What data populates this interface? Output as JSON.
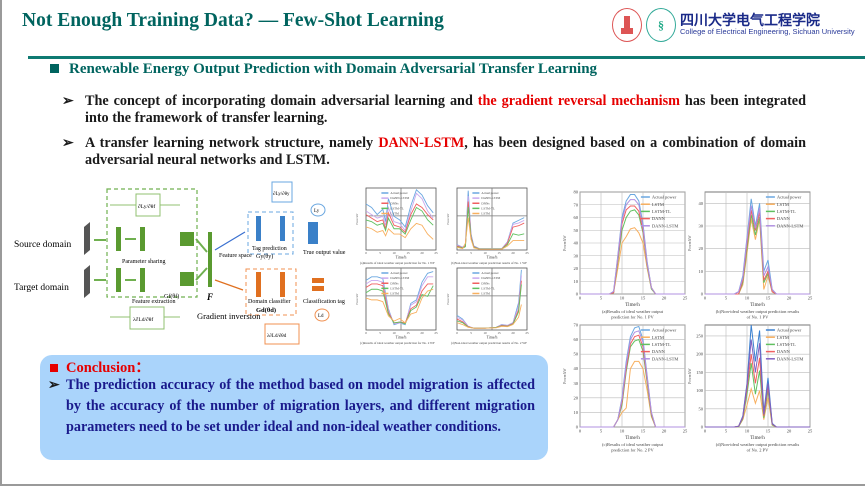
{
  "header": {
    "title": "Not Enough Training Data? — Few-Shot Learning",
    "logo_cn": "四川大学电气工程学院",
    "logo_en": "College of Electrical Engineering, Sichuan University"
  },
  "section": {
    "heading": "Renewable Energy Output Prediction with Domain Adversarial Transfer Learning"
  },
  "bullets": [
    {
      "pre": "The concept of incorporating domain adversarial learning and ",
      "highlight": "the gradient reversal mechanism",
      "post": " has been integrated into the framework of transfer learning."
    },
    {
      "pre": "A transfer learning network structure, namely ",
      "highlight": "DANN-LSTM",
      "post": ", has been designed based on a combination of domain adversarial neural networks and LSTM."
    }
  ],
  "bullet_marker": "➢",
  "diagram": {
    "source": "Source domain",
    "target": "Target domain",
    "param_sharing": "Parameter sharing",
    "feature_extraction": "Feature extraction",
    "gf": "Gf(θf)",
    "f": "F",
    "feature_space": "Feature space",
    "tag_prediction": "Tag prediction",
    "gy": "Gy(θy)",
    "true_output": "True output value",
    "domain_classifier": "Domain classifier",
    "gd": "Gd(θd)",
    "class_tag": "Classification tag",
    "gradient_inversion": "Gradient inversion",
    "grad_top": "∂Ly/∂θf",
    "grad_bottom": "λ∂Ld/∂θf",
    "grad_y": "∂Ly/∂θy",
    "grad_d": "λ∂Ld/∂θd",
    "ly": "Ly",
    "ld": "Ld"
  },
  "chart_data": [
    {
      "type": "line",
      "xlabel": "Time/h",
      "ylabel": "Power/kW",
      "caption": "(a)Results of ideal weather output prediction for No. 1 WF",
      "xlim": [
        0,
        25
      ],
      "ylim": [
        0,
        350
      ],
      "xticks": [
        0,
        5,
        10,
        15,
        20,
        25
      ],
      "legend": [
        "Actual power",
        "DANN-LSTM",
        "DNNs",
        "LSTM-TL",
        "LSTM"
      ],
      "colors": [
        "#6aa7e0",
        "#c9a8ee",
        "#f06060",
        "#60c060",
        "#f8b060"
      ],
      "x": [
        0,
        2,
        4,
        6,
        7,
        8,
        10,
        12,
        14,
        16,
        18,
        20,
        22,
        24
      ],
      "series": [
        [
          260,
          240,
          200,
          230,
          160,
          290,
          190,
          170,
          130,
          250,
          340,
          310,
          250,
          210
        ],
        [
          220,
          200,
          180,
          190,
          140,
          240,
          160,
          150,
          110,
          220,
          320,
          290,
          220,
          180
        ],
        [
          200,
          180,
          160,
          170,
          120,
          210,
          140,
          130,
          100,
          200,
          260,
          240,
          200,
          170
        ],
        [
          170,
          160,
          140,
          150,
          110,
          180,
          120,
          120,
          90,
          170,
          240,
          220,
          170,
          140
        ],
        [
          130,
          120,
          100,
          110,
          80,
          120,
          90,
          90,
          70,
          120,
          150,
          140,
          90,
          60
        ]
      ]
    },
    {
      "type": "line",
      "xlabel": "Time/h",
      "ylabel": "Power/kW",
      "caption": "(b)Non-ideal weather output prediction results of No. 1 WF",
      "xlim": [
        0,
        25
      ],
      "ylim": [
        0,
        230
      ],
      "xticks": [
        0,
        5,
        10,
        15,
        20,
        25
      ],
      "legend": [
        "Actual power",
        "DANN-LSTM",
        "DNNs",
        "LSTM-TL",
        "LSTM"
      ],
      "colors": [
        "#6aa7e0",
        "#c9a8ee",
        "#f06060",
        "#60c060",
        "#f8b060"
      ],
      "x": [
        0,
        2,
        3,
        4,
        5,
        6,
        8,
        12,
        16,
        18,
        20,
        22,
        24
      ],
      "series": [
        [
          20,
          10,
          20,
          220,
          60,
          15,
          5,
          5,
          5,
          30,
          100,
          110,
          120
        ],
        [
          18,
          9,
          18,
          200,
          55,
          13,
          5,
          5,
          5,
          28,
          95,
          100,
          110
        ],
        [
          15,
          8,
          15,
          180,
          50,
          12,
          4,
          4,
          4,
          25,
          85,
          90,
          100
        ],
        [
          12,
          7,
          12,
          160,
          45,
          10,
          4,
          4,
          4,
          20,
          60,
          55,
          60
        ],
        [
          10,
          5,
          25,
          120,
          40,
          8,
          3,
          3,
          3,
          15,
          35,
          35,
          35
        ]
      ]
    },
    {
      "type": "line",
      "xlabel": "Time/h",
      "ylabel": "Power/kW",
      "caption": "(c)Results of ideal weather output prediction for No. 2 WF",
      "xlim": [
        0,
        25
      ],
      "ylim": [
        0,
        350
      ],
      "xticks": [
        0,
        5,
        10,
        15,
        20,
        25
      ],
      "legend": [
        "Actual power",
        "DANN-LSTM",
        "DNNs",
        "LSTM-TL",
        "LSTM"
      ],
      "colors": [
        "#6aa7e0",
        "#c9a8ee",
        "#f06060",
        "#60c060",
        "#f8b060"
      ],
      "x": [
        0,
        2,
        4,
        6,
        8,
        10,
        12,
        14,
        16,
        18,
        20,
        22,
        24
      ],
      "series": [
        [
          280,
          300,
          300,
          290,
          120,
          30,
          40,
          30,
          150,
          170,
          270,
          320,
          330
        ],
        [
          260,
          280,
          280,
          270,
          110,
          35,
          40,
          35,
          140,
          160,
          250,
          300,
          300
        ],
        [
          240,
          260,
          260,
          250,
          100,
          40,
          45,
          40,
          120,
          140,
          220,
          260,
          260
        ],
        [
          210,
          230,
          230,
          220,
          90,
          40,
          45,
          35,
          110,
          130,
          200,
          190,
          250
        ],
        [
          180,
          170,
          170,
          160,
          80,
          50,
          65,
          40,
          90,
          100,
          180,
          220,
          230
        ]
      ]
    },
    {
      "type": "line",
      "xlabel": "Time/h",
      "ylabel": "Power/kW",
      "caption": "(d)Non-ideal weather output prediction results of No. 2 WF",
      "xlim": [
        0,
        25
      ],
      "ylim": [
        0,
        340
      ],
      "xticks": [
        0,
        5,
        10,
        15,
        20,
        25
      ],
      "legend": [
        "Actual power",
        "DANN-LSTM",
        "DNNs",
        "LSTM-TL",
        "LSTM"
      ],
      "colors": [
        "#6aa7e0",
        "#c9a8ee",
        "#f06060",
        "#60c060",
        "#f8b060"
      ],
      "x": [
        0,
        2,
        4,
        6,
        10,
        14,
        16,
        18,
        20,
        22,
        23
      ],
      "series": [
        [
          80,
          60,
          20,
          10,
          10,
          15,
          30,
          25,
          40,
          150,
          330
        ],
        [
          70,
          55,
          20,
          10,
          10,
          15,
          28,
          25,
          38,
          130,
          300
        ],
        [
          60,
          45,
          18,
          10,
          10,
          14,
          25,
          22,
          35,
          110,
          270
        ],
        [
          50,
          40,
          16,
          10,
          10,
          14,
          22,
          20,
          32,
          100,
          250
        ],
        [
          40,
          30,
          15,
          10,
          10,
          12,
          20,
          18,
          30,
          70,
          140
        ]
      ]
    },
    {
      "type": "line",
      "xlabel": "Time/h",
      "ylabel": "Power/kW",
      "caption": "(a)Results of ideal weather output prediction for No. 1 PV",
      "xlim": [
        0,
        25
      ],
      "ylim": [
        0,
        80
      ],
      "xticks": [
        0,
        5,
        10,
        15,
        20,
        25
      ],
      "yticks": [
        0,
        10,
        20,
        30,
        40,
        50,
        60,
        70,
        80
      ],
      "legend": [
        "Actual power",
        "LSTM",
        "LSTM-TL",
        "DANN",
        "DANN-LSTM"
      ],
      "colors": [
        "#6aa7e0",
        "#f8b060",
        "#60c060",
        "#f06060",
        "#b090e0"
      ],
      "x": [
        0,
        7,
        8,
        9,
        10,
        11,
        12,
        13,
        14,
        15,
        16,
        17,
        18,
        25
      ],
      "series": [
        [
          0,
          0,
          2,
          30,
          60,
          73,
          78,
          78,
          73,
          55,
          25,
          5,
          0,
          0
        ],
        [
          0,
          0,
          1,
          20,
          40,
          45,
          51,
          52,
          48,
          40,
          20,
          4,
          0,
          0
        ],
        [
          0,
          0,
          1,
          25,
          50,
          60,
          65,
          66,
          62,
          48,
          22,
          4,
          0,
          0
        ],
        [
          0,
          0,
          1,
          27,
          55,
          66,
          69,
          69,
          65,
          50,
          23,
          5,
          0,
          0
        ],
        [
          0,
          0,
          2,
          29,
          58,
          70,
          74,
          74,
          70,
          53,
          24,
          5,
          0,
          0
        ]
      ]
    },
    {
      "type": "line",
      "xlabel": "Time/h",
      "ylabel": "Power/kW",
      "caption": "(b)Non-ideal weather output prediction results of No. 1 PV",
      "xlim": [
        0,
        25
      ],
      "ylim": [
        0,
        45
      ],
      "xticks": [
        0,
        5,
        10,
        15,
        20,
        25
      ],
      "yticks": [
        0,
        10,
        20,
        30,
        40
      ],
      "legend": [
        "Actual power",
        "LSTM",
        "LSTM-TL",
        "DANN",
        "DANN-LSTM"
      ],
      "colors": [
        "#6aa7e0",
        "#f8b060",
        "#60c060",
        "#f06060",
        "#b090e0"
      ],
      "x": [
        0,
        7,
        8,
        9,
        10,
        11,
        12,
        13,
        14,
        15,
        16,
        17,
        25
      ],
      "series": [
        [
          0,
          0,
          1,
          8,
          25,
          42,
          30,
          40,
          10,
          15,
          2,
          0,
          0
        ],
        [
          0,
          0,
          0,
          4,
          18,
          33,
          24,
          33,
          2,
          8,
          1,
          0,
          0
        ],
        [
          0,
          0,
          0,
          5,
          20,
          35,
          26,
          34,
          5,
          9,
          1,
          0,
          0
        ],
        [
          0,
          0,
          0,
          6,
          22,
          37,
          28,
          36,
          6,
          10,
          1,
          0,
          0
        ],
        [
          0,
          0,
          1,
          7,
          24,
          39,
          29,
          38,
          8,
          12,
          2,
          0,
          0
        ]
      ]
    },
    {
      "type": "line",
      "xlabel": "Time/h",
      "ylabel": "Power/kW",
      "caption": "(c)Results of ideal weather output prediction for No. 2 PV",
      "xlim": [
        0,
        25
      ],
      "ylim": [
        0,
        70
      ],
      "xticks": [
        0,
        5,
        10,
        15,
        20,
        25
      ],
      "yticks": [
        0,
        10,
        20,
        30,
        40,
        50,
        60,
        70
      ],
      "legend": [
        "Actual power",
        "LSTM",
        "LSTM-TL",
        "DANN",
        "DANN-LSTM"
      ],
      "colors": [
        "#6aa7e0",
        "#f8b060",
        "#60c060",
        "#f06060",
        "#b090e0"
      ],
      "x": [
        0,
        8,
        9,
        10,
        11,
        12,
        13,
        14,
        15,
        16,
        17,
        18,
        25
      ],
      "series": [
        [
          0,
          0,
          5,
          20,
          45,
          62,
          68,
          69,
          60,
          35,
          10,
          0,
          0
        ],
        [
          0,
          0,
          5,
          10,
          13,
          40,
          45,
          45,
          40,
          25,
          7,
          0,
          0
        ],
        [
          0,
          0,
          5,
          15,
          38,
          55,
          59,
          60,
          52,
          30,
          8,
          0,
          0
        ],
        [
          0,
          0,
          5,
          17,
          40,
          57,
          62,
          63,
          55,
          32,
          9,
          0,
          0
        ],
        [
          0,
          0,
          5,
          19,
          43,
          60,
          65,
          66,
          58,
          34,
          10,
          0,
          0
        ]
      ]
    },
    {
      "type": "line",
      "xlabel": "Time/h",
      "ylabel": "Power/kW",
      "caption": "(d)Non-ideal weather output prediction results of No. 2 PV",
      "xlim": [
        0,
        25
      ],
      "ylim": [
        0,
        280
      ],
      "xticks": [
        0,
        5,
        10,
        15,
        20,
        25
      ],
      "yticks": [
        0,
        50,
        100,
        150,
        200,
        250
      ],
      "legend": [
        "Actual power",
        "LSTM",
        "LSTM-TL",
        "DANN",
        "DANN-LSTM"
      ],
      "colors": [
        "#3a80d0",
        "#f8b060",
        "#60c060",
        "#f06060",
        "#8060c0"
      ],
      "x": [
        0,
        7,
        8,
        9,
        10,
        11,
        12,
        13,
        14,
        15,
        16,
        17,
        25
      ],
      "series": [
        [
          0,
          0,
          2,
          30,
          120,
          280,
          180,
          265,
          40,
          135,
          10,
          0,
          0
        ],
        [
          0,
          0,
          1,
          20,
          60,
          105,
          65,
          100,
          20,
          80,
          5,
          0,
          0
        ],
        [
          0,
          0,
          1,
          22,
          90,
          175,
          90,
          155,
          25,
          100,
          6,
          0,
          0
        ],
        [
          0,
          0,
          2,
          25,
          105,
          200,
          120,
          190,
          30,
          110,
          8,
          0,
          0
        ],
        [
          0,
          0,
          2,
          28,
          115,
          240,
          150,
          230,
          35,
          120,
          9,
          0,
          0
        ]
      ]
    }
  ],
  "conclusion": {
    "heading": "Conclusion：",
    "text": "The prediction accuracy of the method based on model migration is affected by the accuracy of the number of migration layers, and different migration parameters need to be set under ideal and non-ideal weather conditions."
  }
}
